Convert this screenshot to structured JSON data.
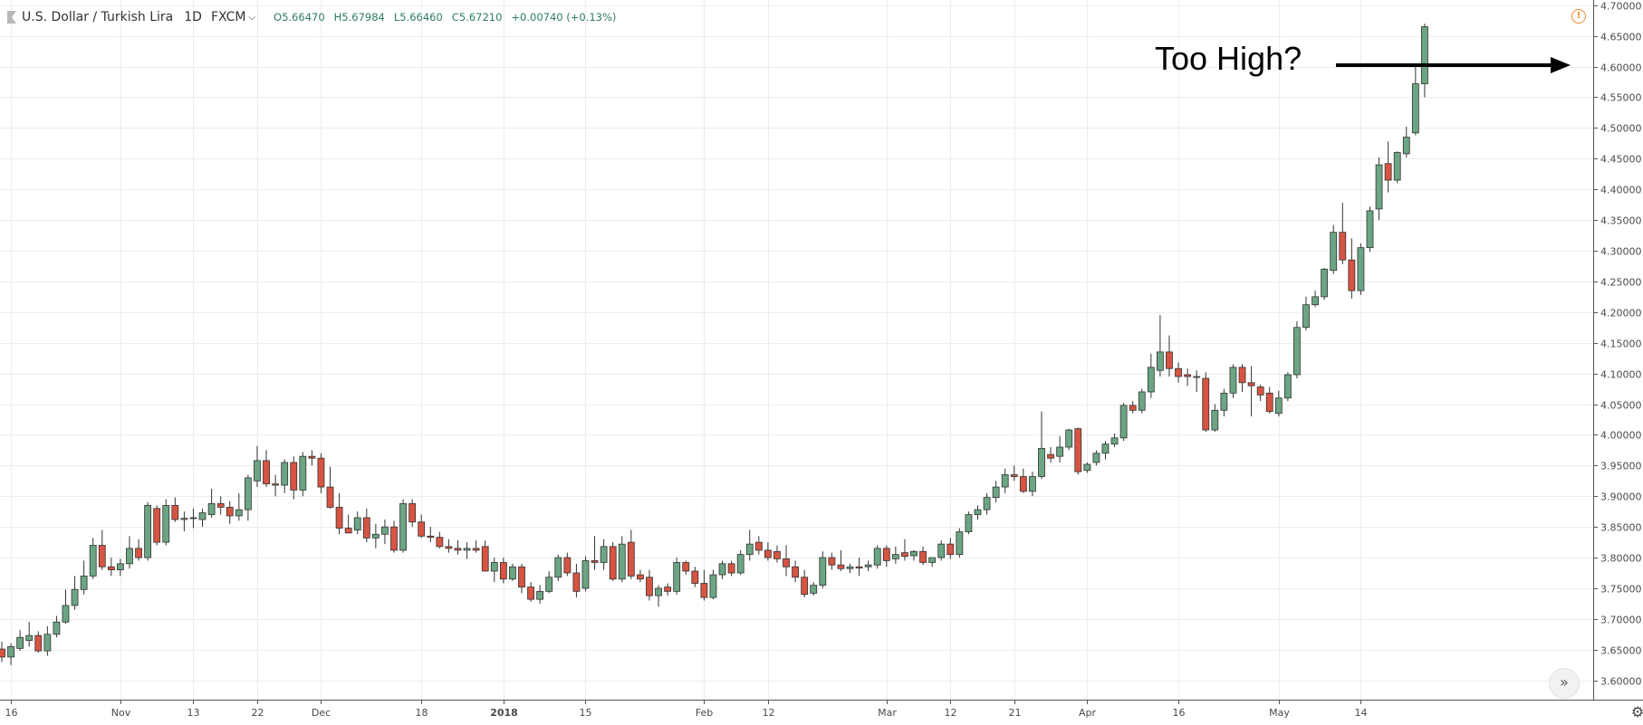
{
  "header": {
    "symbol_title": "U.S. Dollar / Turkish Lira",
    "timeframe": "1D",
    "exchange": "FXCM",
    "open": "O5.66470",
    "high": "H5.67984",
    "low": "L5.66460",
    "close": "C5.67210",
    "change": "+0.00740 (+0.13%)"
  },
  "annotation": {
    "text": "Too High?"
  },
  "icons": {
    "warning": "!",
    "scroll_right": "»",
    "settings": "⚙"
  },
  "colors": {
    "up": "#6ba583",
    "down": "#d75442",
    "grid": "#ececec",
    "text": "#4a4a4a",
    "axis": "#555555"
  },
  "chart_data": {
    "type": "candlestick",
    "ylim": [
      3.57,
      4.71
    ],
    "y_ticks": [
      "3.60000",
      "3.65000",
      "3.70000",
      "3.75000",
      "3.80000",
      "3.85000",
      "3.90000",
      "3.95000",
      "4.00000",
      "4.05000",
      "4.10000",
      "4.15000",
      "4.20000",
      "4.25000",
      "4.30000",
      "4.35000",
      "4.40000",
      "4.45000",
      "4.50000",
      "4.55000",
      "4.60000",
      "4.65000",
      "4.70000"
    ],
    "x_ticks": [
      {
        "label": "16",
        "index": 1
      },
      {
        "label": "Nov",
        "index": 13
      },
      {
        "label": "13",
        "index": 21
      },
      {
        "label": "22",
        "index": 28
      },
      {
        "label": "Dec",
        "index": 35
      },
      {
        "label": "18",
        "index": 46
      },
      {
        "label": "2018",
        "index": 55
      },
      {
        "label": "15",
        "index": 64
      },
      {
        "label": "Feb",
        "index": 77
      },
      {
        "label": "12",
        "index": 84
      },
      {
        "label": "Mar",
        "index": 97
      },
      {
        "label": "12",
        "index": 104
      },
      {
        "label": "21",
        "index": 111
      },
      {
        "label": "Apr",
        "index": 119
      },
      {
        "label": "16",
        "index": 129
      },
      {
        "label": "May",
        "index": 140
      },
      {
        "label": "14",
        "index": 149
      }
    ],
    "candles": [
      [
        3.651,
        3.663,
        3.63,
        3.638
      ],
      [
        3.638,
        3.66,
        3.625,
        3.655
      ],
      [
        3.652,
        3.682,
        3.648,
        3.67
      ],
      [
        3.665,
        3.695,
        3.655,
        3.673
      ],
      [
        3.673,
        3.68,
        3.645,
        3.648
      ],
      [
        3.648,
        3.688,
        3.64,
        3.675
      ],
      [
        3.675,
        3.705,
        3.67,
        3.695
      ],
      [
        3.695,
        3.748,
        3.692,
        3.722
      ],
      [
        3.722,
        3.77,
        3.715,
        3.748
      ],
      [
        3.748,
        3.795,
        3.74,
        3.77
      ],
      [
        3.77,
        3.832,
        3.765,
        3.82
      ],
      [
        3.82,
        3.845,
        3.78,
        3.785
      ],
      [
        3.785,
        3.8,
        3.77,
        3.78
      ],
      [
        3.78,
        3.798,
        3.77,
        3.79
      ],
      [
        3.79,
        3.835,
        3.782,
        3.815
      ],
      [
        3.815,
        3.83,
        3.795,
        3.8
      ],
      [
        3.8,
        3.89,
        3.795,
        3.885
      ],
      [
        3.88,
        3.885,
        3.82,
        3.825
      ],
      [
        3.825,
        3.895,
        3.82,
        3.885
      ],
      [
        3.885,
        3.898,
        3.858,
        3.862
      ],
      [
        3.862,
        3.875,
        3.843,
        3.864
      ],
      [
        3.864,
        3.88,
        3.848,
        3.865
      ],
      [
        3.862,
        3.88,
        3.85,
        3.873
      ],
      [
        3.87,
        3.912,
        3.865,
        3.888
      ],
      [
        3.888,
        3.9,
        3.87,
        3.882
      ],
      [
        3.882,
        3.892,
        3.855,
        3.868
      ],
      [
        3.868,
        3.905,
        3.86,
        3.878
      ],
      [
        3.878,
        3.935,
        3.86,
        3.93
      ],
      [
        3.925,
        3.982,
        3.915,
        3.958
      ],
      [
        3.958,
        3.975,
        3.915,
        3.92
      ],
      [
        3.92,
        3.935,
        3.9,
        3.918
      ],
      [
        3.918,
        3.96,
        3.905,
        3.955
      ],
      [
        3.955,
        3.965,
        3.895,
        3.91
      ],
      [
        3.91,
        3.972,
        3.9,
        3.965
      ],
      [
        3.965,
        3.975,
        3.95,
        3.962
      ],
      [
        3.962,
        3.97,
        3.905,
        3.915
      ],
      [
        3.915,
        3.948,
        3.88,
        3.882
      ],
      [
        3.882,
        3.905,
        3.838,
        3.848
      ],
      [
        3.848,
        3.87,
        3.84,
        3.84
      ],
      [
        3.845,
        3.875,
        3.838,
        3.865
      ],
      [
        3.865,
        3.88,
        3.825,
        3.832
      ],
      [
        3.832,
        3.855,
        3.815,
        3.838
      ],
      [
        3.838,
        3.862,
        3.822,
        3.85
      ],
      [
        3.85,
        3.86,
        3.808,
        3.812
      ],
      [
        3.812,
        3.895,
        3.808,
        3.888
      ],
      [
        3.888,
        3.895,
        3.85,
        3.858
      ],
      [
        3.858,
        3.87,
        3.832,
        3.835
      ],
      [
        3.835,
        3.85,
        3.825,
        3.833
      ],
      [
        3.833,
        3.842,
        3.815,
        3.818
      ],
      [
        3.818,
        3.83,
        3.808,
        3.815
      ],
      [
        3.815,
        3.828,
        3.805,
        3.812
      ],
      [
        3.812,
        3.825,
        3.798,
        3.815
      ],
      [
        3.815,
        3.828,
        3.808,
        3.812
      ],
      [
        3.818,
        3.828,
        3.78,
        3.778
      ],
      [
        3.778,
        3.8,
        3.76,
        3.792
      ],
      [
        3.792,
        3.8,
        3.758,
        3.765
      ],
      [
        3.765,
        3.79,
        3.762,
        3.785
      ],
      [
        3.785,
        3.79,
        3.742,
        3.752
      ],
      [
        3.752,
        3.76,
        3.728,
        3.732
      ],
      [
        3.732,
        3.755,
        3.725,
        3.745
      ],
      [
        3.745,
        3.778,
        3.742,
        3.768
      ],
      [
        3.768,
        3.805,
        3.762,
        3.8
      ],
      [
        3.8,
        3.808,
        3.77,
        3.775
      ],
      [
        3.775,
        3.79,
        3.735,
        3.745
      ],
      [
        3.75,
        3.802,
        3.745,
        3.795
      ],
      [
        3.795,
        3.835,
        3.78,
        3.792
      ],
      [
        3.792,
        3.83,
        3.78,
        3.818
      ],
      [
        3.818,
        3.825,
        3.762,
        3.765
      ],
      [
        3.765,
        3.835,
        3.76,
        3.822
      ],
      [
        3.825,
        3.845,
        3.765,
        3.77
      ],
      [
        3.772,
        3.78,
        3.76,
        3.765
      ],
      [
        3.768,
        3.78,
        3.73,
        3.738
      ],
      [
        3.738,
        3.755,
        3.72,
        3.75
      ],
      [
        3.752,
        3.758,
        3.738,
        3.745
      ],
      [
        3.745,
        3.8,
        3.74,
        3.792
      ],
      [
        3.792,
        3.795,
        3.772,
        3.778
      ],
      [
        3.778,
        3.785,
        3.752,
        3.758
      ],
      [
        3.758,
        3.78,
        3.73,
        3.735
      ],
      [
        3.735,
        3.78,
        3.732,
        3.772
      ],
      [
        3.772,
        3.795,
        3.765,
        3.79
      ],
      [
        3.79,
        3.795,
        3.77,
        3.775
      ],
      [
        3.775,
        3.812,
        3.772,
        3.805
      ],
      [
        3.805,
        3.845,
        3.795,
        3.822
      ],
      [
        3.825,
        3.835,
        3.805,
        3.812
      ],
      [
        3.812,
        3.825,
        3.795,
        3.8
      ],
      [
        3.81,
        3.82,
        3.792,
        3.798
      ],
      [
        3.798,
        3.82,
        3.77,
        3.785
      ],
      [
        3.785,
        3.795,
        3.76,
        3.768
      ],
      [
        3.768,
        3.78,
        3.735,
        3.74
      ],
      [
        3.742,
        3.76,
        3.738,
        3.755
      ],
      [
        3.755,
        3.81,
        3.75,
        3.8
      ],
      [
        3.8,
        3.808,
        3.78,
        3.788
      ],
      [
        3.788,
        3.812,
        3.778,
        3.782
      ],
      [
        3.782,
        3.79,
        3.775,
        3.785
      ],
      [
        3.785,
        3.8,
        3.77,
        3.783
      ],
      [
        3.785,
        3.795,
        3.778,
        3.788
      ],
      [
        3.788,
        3.82,
        3.782,
        3.815
      ],
      [
        3.815,
        3.82,
        3.785,
        3.795
      ],
      [
        3.798,
        3.818,
        3.79,
        3.805
      ],
      [
        3.808,
        3.83,
        3.795,
        3.802
      ],
      [
        3.803,
        3.812,
        3.795,
        3.81
      ],
      [
        3.81,
        3.818,
        3.788,
        3.792
      ],
      [
        3.792,
        3.8,
        3.785,
        3.8
      ],
      [
        3.8,
        3.828,
        3.795,
        3.822
      ],
      [
        3.822,
        3.832,
        3.798,
        3.805
      ],
      [
        3.805,
        3.848,
        3.8,
        3.842
      ],
      [
        3.842,
        3.875,
        3.838,
        3.87
      ],
      [
        3.87,
        3.885,
        3.862,
        3.878
      ],
      [
        3.878,
        3.905,
        3.87,
        3.898
      ],
      [
        3.898,
        3.925,
        3.89,
        3.915
      ],
      [
        3.915,
        3.945,
        3.905,
        3.935
      ],
      [
        3.935,
        3.95,
        3.925,
        3.932
      ],
      [
        3.932,
        3.945,
        3.905,
        3.908
      ],
      [
        3.908,
        3.94,
        3.9,
        3.932
      ],
      [
        3.932,
        4.038,
        3.928,
        3.978
      ],
      [
        3.968,
        3.98,
        3.955,
        3.962
      ],
      [
        3.965,
        3.998,
        3.955,
        3.98
      ],
      [
        3.98,
        4.01,
        3.975,
        4.008
      ],
      [
        4.01,
        4.012,
        3.935,
        3.94
      ],
      [
        3.942,
        3.955,
        3.938,
        3.952
      ],
      [
        3.955,
        3.975,
        3.95,
        3.97
      ],
      [
        3.97,
        3.99,
        3.96,
        3.985
      ],
      [
        3.985,
        4.002,
        3.98,
        3.995
      ],
      [
        3.995,
        4.052,
        3.99,
        4.048
      ],
      [
        4.048,
        4.055,
        4.035,
        4.04
      ],
      [
        4.04,
        4.075,
        4.035,
        4.07
      ],
      [
        4.07,
        4.132,
        4.06,
        4.11
      ],
      [
        4.105,
        4.195,
        4.095,
        4.135
      ],
      [
        4.135,
        4.162,
        4.095,
        4.108
      ],
      [
        4.108,
        4.118,
        4.085,
        4.095
      ],
      [
        4.098,
        4.108,
        4.08,
        4.095
      ],
      [
        4.095,
        4.105,
        4.07,
        4.095
      ],
      [
        4.092,
        4.102,
        4.005,
        4.008
      ],
      [
        4.008,
        4.05,
        4.005,
        4.04
      ],
      [
        4.04,
        4.075,
        4.03,
        4.068
      ],
      [
        4.068,
        4.115,
        4.06,
        4.11
      ],
      [
        4.11,
        4.115,
        4.07,
        4.085
      ],
      [
        4.085,
        4.112,
        4.03,
        4.08
      ],
      [
        4.078,
        4.082,
        4.055,
        4.065
      ],
      [
        4.068,
        4.078,
        4.035,
        4.038
      ],
      [
        4.035,
        4.072,
        4.03,
        4.06
      ],
      [
        4.06,
        4.102,
        4.055,
        4.098
      ],
      [
        4.098,
        4.185,
        4.092,
        4.175
      ],
      [
        4.175,
        4.225,
        4.17,
        4.212
      ],
      [
        4.212,
        4.235,
        4.208,
        4.225
      ],
      [
        4.225,
        4.272,
        4.22,
        4.27
      ],
      [
        4.268,
        4.342,
        4.262,
        4.33
      ],
      [
        4.33,
        4.378,
        4.278,
        4.285
      ],
      [
        4.285,
        4.32,
        4.222,
        4.235
      ],
      [
        4.235,
        4.312,
        4.228,
        4.305
      ],
      [
        4.305,
        4.372,
        4.298,
        4.365
      ],
      [
        4.368,
        4.452,
        4.35,
        4.44
      ],
      [
        4.442,
        4.478,
        4.395,
        4.415
      ],
      [
        4.415,
        4.462,
        4.41,
        4.46
      ],
      [
        4.458,
        4.502,
        4.452,
        4.485
      ],
      [
        4.492,
        4.602,
        4.488,
        4.572
      ],
      [
        4.572,
        4.67,
        4.55,
        4.665
      ]
    ]
  }
}
